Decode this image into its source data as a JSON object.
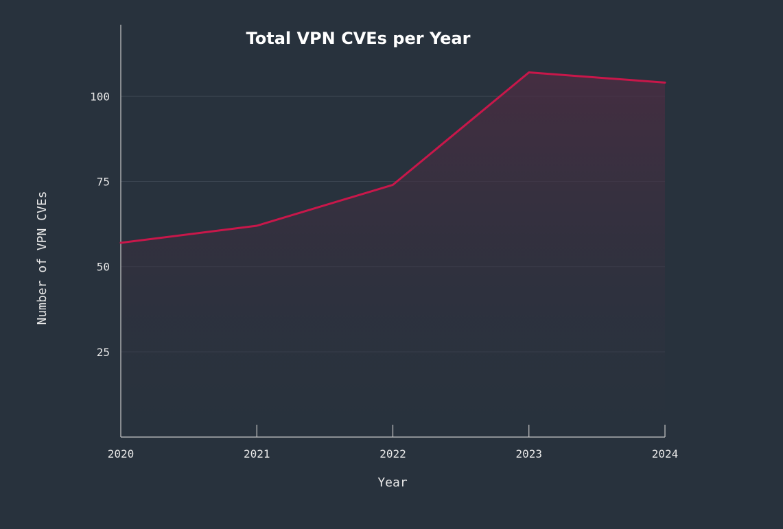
{
  "chart_data": {
    "type": "area",
    "title": "Total VPN CVEs per Year",
    "xlabel": "Year",
    "ylabel": "Number of VPN CVEs",
    "x": [
      "2020",
      "2021",
      "2022",
      "2023",
      "2024"
    ],
    "series": [
      {
        "values": [
          57,
          62,
          74,
          107,
          104
        ]
      }
    ],
    "yticks": [
      "25",
      "50",
      "75",
      "100"
    ],
    "ylim": [
      0,
      121
    ],
    "grid": true,
    "legend": "none"
  },
  "colors": {
    "background": "#28323d",
    "line": "#c8174a",
    "fill_top": "#4a2d42",
    "grid": "#3a4450",
    "axis": "#c8c8c8"
  }
}
